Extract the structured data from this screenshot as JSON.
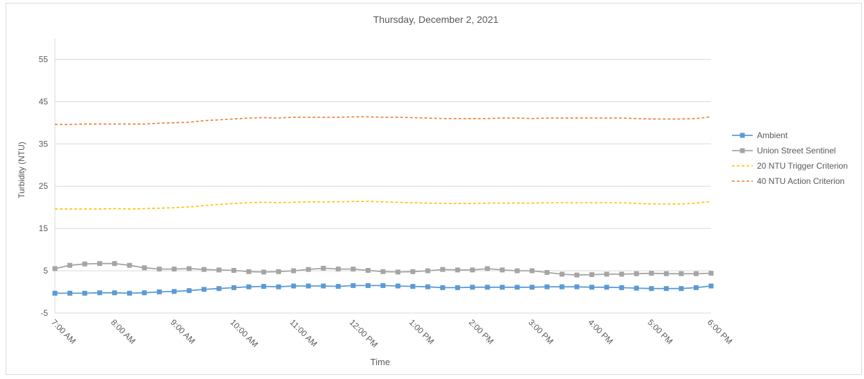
{
  "chart_data": {
    "type": "line",
    "title": "Thursday, December 2, 2021",
    "xlabel": "Time",
    "ylabel": "Turbidity (NTU)",
    "ylim": [
      -5,
      60
    ],
    "yticks": [
      -5,
      5,
      15,
      25,
      35,
      45,
      55
    ],
    "grid": true,
    "legend_position": "right",
    "x_start": "7:00 AM",
    "x_end": "6:00 PM",
    "x_interval_minutes": 15,
    "xtick_labels": [
      "7:00 AM",
      "8:00 AM",
      "9:00 AM",
      "10:00 AM",
      "11:00 AM",
      "12:00 PM",
      "1:00 PM",
      "2:00 PM",
      "3:00 PM",
      "4:00 PM",
      "5:00 PM",
      "6:00 PM"
    ],
    "series": [
      {
        "name": "Ambient",
        "color": "#5b9bd5",
        "style": "solid",
        "marker": "square",
        "values": [
          -0.3,
          -0.3,
          -0.3,
          -0.2,
          -0.2,
          -0.3,
          -0.2,
          0.0,
          0.1,
          0.3,
          0.6,
          0.8,
          1.0,
          1.2,
          1.3,
          1.2,
          1.4,
          1.4,
          1.4,
          1.3,
          1.5,
          1.5,
          1.5,
          1.4,
          1.3,
          1.2,
          1.0,
          1.0,
          1.1,
          1.1,
          1.1,
          1.1,
          1.1,
          1.2,
          1.2,
          1.2,
          1.1,
          1.1,
          1.0,
          0.9,
          0.8,
          0.8,
          0.8,
          1.0,
          1.4
        ]
      },
      {
        "name": "Union Street Sentinel",
        "color": "#a5a5a5",
        "style": "solid",
        "marker": "square",
        "values": [
          5.5,
          6.3,
          6.6,
          6.7,
          6.7,
          6.3,
          5.7,
          5.4,
          5.4,
          5.5,
          5.3,
          5.2,
          5.1,
          4.8,
          4.7,
          4.8,
          5.0,
          5.3,
          5.6,
          5.4,
          5.4,
          5.1,
          4.8,
          4.7,
          4.8,
          5.0,
          5.3,
          5.2,
          5.2,
          5.5,
          5.2,
          5.0,
          5.0,
          4.6,
          4.2,
          4.0,
          4.1,
          4.2,
          4.2,
          4.3,
          4.4,
          4.3,
          4.3,
          4.3,
          4.4
        ]
      },
      {
        "name": "20 NTU Trigger Criterion",
        "color": "#ffc000",
        "style": "dashed",
        "marker": "none",
        "values": [
          19.6,
          19.6,
          19.6,
          19.6,
          19.7,
          19.6,
          19.7,
          19.8,
          19.9,
          20.1,
          20.4,
          20.7,
          20.9,
          21.1,
          21.2,
          21.1,
          21.2,
          21.3,
          21.3,
          21.3,
          21.4,
          21.4,
          21.3,
          21.2,
          21.1,
          21.0,
          20.9,
          20.9,
          20.9,
          21.0,
          21.0,
          21.0,
          21.0,
          21.1,
          21.1,
          21.1,
          21.1,
          21.1,
          21.1,
          20.9,
          20.8,
          20.8,
          20.8,
          21.0,
          21.4
        ]
      },
      {
        "name": "40 NTU Action Criterion",
        "color": "#ed7d31",
        "style": "dashed",
        "marker": "none",
        "values": [
          39.6,
          39.6,
          39.7,
          39.7,
          39.7,
          39.7,
          39.7,
          39.9,
          40.0,
          40.1,
          40.5,
          40.7,
          40.9,
          41.1,
          41.2,
          41.1,
          41.3,
          41.3,
          41.3,
          41.3,
          41.4,
          41.4,
          41.3,
          41.3,
          41.2,
          41.1,
          41.0,
          41.0,
          41.0,
          41.0,
          41.1,
          41.1,
          41.0,
          41.1,
          41.1,
          41.1,
          41.1,
          41.1,
          41.1,
          41.0,
          40.9,
          40.9,
          40.9,
          41.0,
          41.4
        ]
      }
    ]
  }
}
